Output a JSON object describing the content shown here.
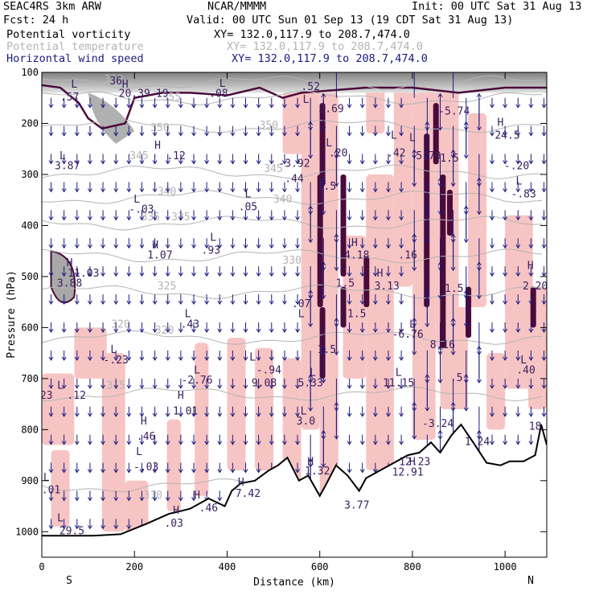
{
  "header": {
    "model": "SEAC4RS  3km ARW",
    "org": "NCAR/MMMM",
    "init": "Init: 00 UTC Sat 31 Aug 13",
    "fcst": "Fcst:   24 h",
    "valid": "Valid: 00 UTC Sun 01 Sep 13 (19 CDT Sat 31 Aug 13)",
    "fields": [
      {
        "label": "Potential vorticity",
        "xy": "XY= 132.0,117.9 to 208.7,474.0",
        "color": "#000000"
      },
      {
        "label": "Potential temperature",
        "xy": "XY= 132.0,117.9 to 208.7,474.0",
        "color": "#b4b4b4"
      },
      {
        "label": "Horizontal wind speed",
        "xy": "XY= 132.0,117.9 to 208.7,474.0",
        "color": "#1a1a80"
      }
    ]
  },
  "chart_data": {
    "type": "cross-section",
    "xlabel": "Distance (km)",
    "ylabel": "Pressure (hPa)",
    "xlim": [
      0,
      1090
    ],
    "ylim": [
      1050,
      100
    ],
    "x_ticks": [
      0,
      200,
      400,
      600,
      800,
      1000
    ],
    "y_ticks": [
      100,
      200,
      300,
      400,
      500,
      600,
      700,
      800,
      900,
      1000
    ],
    "end_labels": {
      "left": "S",
      "right": "N"
    },
    "colors": {
      "pv_fill": "#f7c4c4",
      "pv_dark": "#4a0a3a",
      "theta": "#b4b4b4",
      "wind": "#1a1a80",
      "stratosphere": "#707070"
    },
    "theta_contours": [
      {
        "value": 310,
        "p": 910
      },
      {
        "value": 315,
        "p": 730
      },
      {
        "value": 320,
        "p": 620
      },
      {
        "value": 325,
        "p": 530
      },
      {
        "value": 330,
        "p": 460
      },
      {
        "value": 335,
        "p": 395
      },
      {
        "value": 340,
        "p": 345
      },
      {
        "value": 345,
        "p": 295
      },
      {
        "value": 350,
        "p": 205
      },
      {
        "value": 355,
        "p": 150
      },
      {
        "value": 360,
        "p": 120
      }
    ],
    "theta_labels": [
      {
        "text": "310",
        "x": 240,
        "p": 935
      },
      {
        "text": "315",
        "x": 160,
        "p": 720
      },
      {
        "text": "320",
        "x": 170,
        "p": 600
      },
      {
        "text": "320",
        "x": 265,
        "p": 612
      },
      {
        "text": "325",
        "x": 270,
        "p": 525
      },
      {
        "text": "330",
        "x": 540,
        "p": 475
      },
      {
        "text": "335",
        "x": 235,
        "p": 390
      },
      {
        "text": "335",
        "x": 300,
        "p": 390
      },
      {
        "text": "340",
        "x": 270,
        "p": 340
      },
      {
        "text": "340",
        "x": 520,
        "p": 355
      },
      {
        "text": "345",
        "x": 210,
        "p": 270
      },
      {
        "text": "345",
        "x": 500,
        "p": 295
      },
      {
        "text": "350",
        "x": 255,
        "p": 215
      },
      {
        "text": "350",
        "x": 490,
        "p": 210
      },
      {
        "text": "355",
        "x": 280,
        "p": 155
      },
      {
        "text": "360",
        "x": 155,
        "p": 120
      }
    ],
    "terrain": [
      [
        0,
        1008
      ],
      [
        110,
        1008
      ],
      [
        170,
        1005
      ],
      [
        225,
        985
      ],
      [
        275,
        965
      ],
      [
        320,
        955
      ],
      [
        360,
        935
      ],
      [
        395,
        950
      ],
      [
        410,
        920
      ],
      [
        430,
        905
      ],
      [
        460,
        900
      ],
      [
        490,
        880
      ],
      [
        510,
        870
      ],
      [
        530,
        855
      ],
      [
        555,
        900
      ],
      [
        575,
        890
      ],
      [
        600,
        930
      ],
      [
        615,
        905
      ],
      [
        635,
        870
      ],
      [
        660,
        890
      ],
      [
        685,
        920
      ],
      [
        700,
        895
      ],
      [
        730,
        880
      ],
      [
        760,
        865
      ],
      [
        790,
        850
      ],
      [
        815,
        845
      ],
      [
        840,
        825
      ],
      [
        860,
        845
      ],
      [
        885,
        810
      ],
      [
        905,
        790
      ],
      [
        935,
        830
      ],
      [
        960,
        865
      ],
      [
        990,
        870
      ],
      [
        1010,
        862
      ],
      [
        1040,
        862
      ],
      [
        1065,
        850
      ],
      [
        1078,
        790
      ],
      [
        1090,
        830
      ]
    ],
    "pv_labels": [
      {
        "text": "L",
        "x": 70,
        "p": 130
      },
      {
        "text": ".57",
        "x": 60,
        "p": 155
      },
      {
        "text": "H",
        "x": 180,
        "p": 130
      },
      {
        "text": "20.39",
        "x": 200,
        "p": 148
      },
      {
        "text": "19",
        "x": 260,
        "p": 148
      },
      {
        "text": "L",
        "x": 390,
        "p": 128
      },
      {
        "text": "-.08",
        "x": 375,
        "p": 148
      },
      {
        "text": "36",
        "x": 160,
        "p": 124
      },
      {
        "text": "L",
        "x": 45,
        "p": 270
      },
      {
        "text": "3.87",
        "x": 55,
        "p": 290
      },
      {
        "text": "H",
        "x": 250,
        "p": 250
      },
      {
        "text": ".12",
        "x": 290,
        "p": 270
      },
      {
        "text": "L",
        "x": 205,
        "p": 355
      },
      {
        "text": "-.03",
        "x": 215,
        "p": 375
      },
      {
        "text": "L",
        "x": 445,
        "p": 345
      },
      {
        "text": ".05",
        "x": 445,
        "p": 370
      },
      {
        "text": "L",
        "x": 370,
        "p": 430
      },
      {
        "text": ".93",
        "x": 365,
        "p": 455
      },
      {
        "text": "H",
        "x": 245,
        "p": 445
      },
      {
        "text": "1.07",
        "x": 255,
        "p": 465
      },
      {
        "text": "H",
        "x": 60,
        "p": 480
      },
      {
        "text": "11.03",
        "x": 90,
        "p": 500
      },
      {
        "text": "3.88",
        "x": 60,
        "p": 520
      },
      {
        "text": "L",
        "x": 315,
        "p": 580
      },
      {
        "text": ".43",
        "x": 320,
        "p": 600
      },
      {
        "text": "L",
        "x": 155,
        "p": 650
      },
      {
        "text": "-.23",
        "x": 160,
        "p": 670
      },
      {
        "text": "L",
        "x": 335,
        "p": 690
      },
      {
        "text": "-2.76",
        "x": 335,
        "p": 710
      },
      {
        "text": "L",
        "x": 455,
        "p": 665
      },
      {
        "text": "-.94",
        "x": 490,
        "p": 690
      },
      {
        "text": "9.08",
        "x": 480,
        "p": 715
      },
      {
        "text": "L",
        "x": 570,
        "p": 160
      },
      {
        "text": ".52",
        "x": 580,
        "p": 135
      },
      {
        "text": "3.69",
        "x": 625,
        "p": 178
      },
      {
        "text": "L",
        "x": 620,
        "p": 245
      },
      {
        "text": ".20",
        "x": 640,
        "p": 265
      },
      {
        "text": "-3.92",
        "x": 545,
        "p": 285
      },
      {
        "text": ".44",
        "x": 545,
        "p": 315
      },
      {
        "text": "1.5",
        "x": 615,
        "p": 330
      },
      {
        "text": "H",
        "x": 675,
        "p": 440
      },
      {
        "text": "4.18",
        "x": 680,
        "p": 465
      },
      {
        "text": "1.5",
        "x": 655,
        "p": 520
      },
      {
        "text": "L",
        "x": 560,
        "p": 580
      },
      {
        "text": ".07",
        "x": 560,
        "p": 560
      },
      {
        "text": "1.5",
        "x": 680,
        "p": 580
      },
      {
        "text": "H",
        "x": 730,
        "p": 500
      },
      {
        "text": "3.13",
        "x": 745,
        "p": 525
      },
      {
        "text": ".16",
        "x": 790,
        "p": 465
      },
      {
        "text": "L",
        "x": 760,
        "p": 230
      },
      {
        "text": ".42",
        "x": 765,
        "p": 265
      },
      {
        "text": "L",
        "x": 800,
        "p": 235
      },
      {
        "text": "5.79",
        "x": 835,
        "p": 270
      },
      {
        "text": "-5.74",
        "x": 890,
        "p": 183
      },
      {
        "text": "H",
        "x": 990,
        "p": 205
      },
      {
        "text": "24.5",
        "x": 1005,
        "p": 230
      },
      {
        "text": "1.5",
        "x": 880,
        "p": 275
      },
      {
        "text": "-.20",
        "x": 1025,
        "p": 290
      },
      {
        "text": "L",
        "x": 1030,
        "p": 320
      },
      {
        "text": "-.83",
        "x": 1040,
        "p": 345
      },
      {
        "text": "H",
        "x": 1055,
        "p": 485
      },
      {
        "text": "2.20",
        "x": 1065,
        "p": 525
      },
      {
        "text": "L",
        "x": 800,
        "p": 600
      },
      {
        "text": "-6.76",
        "x": 790,
        "p": 620
      },
      {
        "text": "8.16",
        "x": 865,
        "p": 640
      },
      {
        "text": "1.5",
        "x": 890,
        "p": 530
      },
      {
        "text": ".5",
        "x": 895,
        "p": 705
      },
      {
        "text": "L",
        "x": 1040,
        "p": 670
      },
      {
        "text": ".40",
        "x": 1045,
        "p": 690
      },
      {
        "text": "1.5",
        "x": 615,
        "p": 650
      },
      {
        "text": "L",
        "x": 585,
        "p": 695
      },
      {
        "text": "5.33",
        "x": 580,
        "p": 715
      },
      {
        "text": "L",
        "x": 770,
        "p": 695
      },
      {
        "text": "11.15",
        "x": 770,
        "p": 715
      },
      {
        "text": "L",
        "x": 565,
        "p": 770
      },
      {
        "text": "3.0",
        "x": 570,
        "p": 790
      },
      {
        "text": "-3.24",
        "x": 855,
        "p": 795
      },
      {
        "text": "L",
        "x": 40,
        "p": 720
      },
      {
        "text": ".12",
        "x": 75,
        "p": 740
      },
      {
        "text": "23",
        "x": 10,
        "p": 740
      },
      {
        "text": "H",
        "x": 300,
        "p": 740
      },
      {
        "text": "1.01",
        "x": 310,
        "p": 770
      },
      {
        "text": "H",
        "x": 220,
        "p": 790
      },
      {
        "text": ".46",
        "x": 225,
        "p": 820
      },
      {
        "text": "L",
        "x": 210,
        "p": 850
      },
      {
        "text": "-.03",
        "x": 225,
        "p": 880
      },
      {
        "text": "L",
        "x": 10,
        "p": 900
      },
      {
        "text": ".01",
        "x": 20,
        "p": 925
      },
      {
        "text": "H",
        "x": 430,
        "p": 910
      },
      {
        "text": "7.42",
        "x": 445,
        "p": 932
      },
      {
        "text": "H",
        "x": 335,
        "p": 935
      },
      {
        "text": ".46",
        "x": 360,
        "p": 960
      },
      {
        "text": "H",
        "x": 290,
        "p": 965
      },
      {
        "text": ".03",
        "x": 285,
        "p": 990
      },
      {
        "text": "H",
        "x": 580,
        "p": 870
      },
      {
        "text": "1.32",
        "x": 595,
        "p": 888
      },
      {
        "text": "H",
        "x": 800,
        "p": 870
      },
      {
        "text": "12.23",
        "x": 805,
        "p": 870
      },
      {
        "text": "12.91",
        "x": 790,
        "p": 890
      },
      {
        "text": "3.77",
        "x": 680,
        "p": 955
      },
      {
        "text": "1.24",
        "x": 940,
        "p": 830
      },
      {
        "text": "L",
        "x": 40,
        "p": 980
      },
      {
        "text": "29.5",
        "x": 65,
        "p": 1005
      },
      {
        "text": "18",
        "x": 1065,
        "p": 800
      }
    ]
  }
}
